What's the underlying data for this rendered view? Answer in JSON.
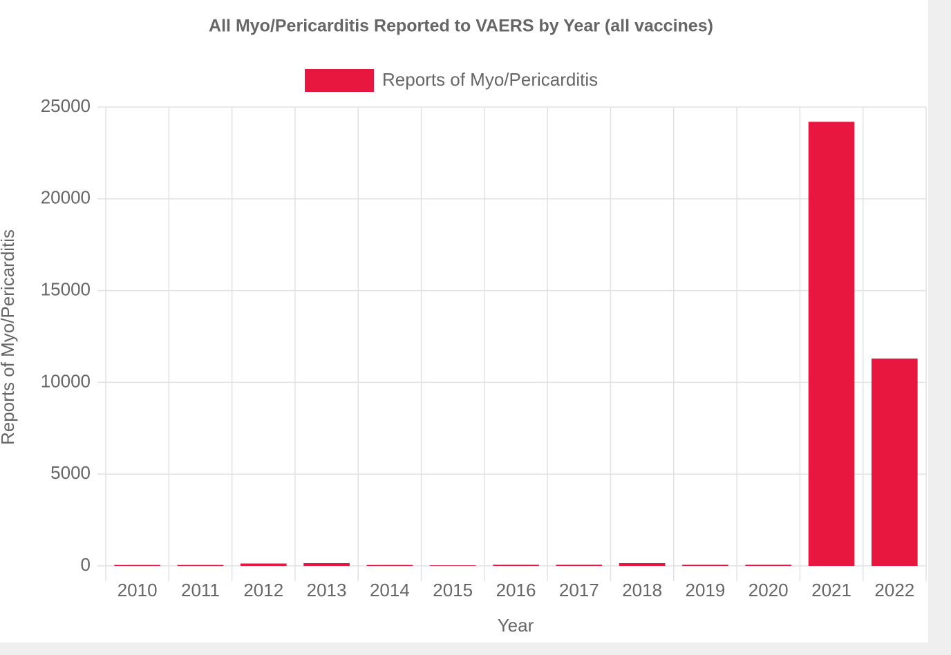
{
  "chart_data": {
    "type": "bar",
    "title": "All Myo/Pericarditis Reported to VAERS by Year (all vaccines)",
    "x_label": "Year",
    "y_label": "Reports of Myo/Pericarditis",
    "categories": [
      "2010",
      "2011",
      "2012",
      "2013",
      "2014",
      "2015",
      "2016",
      "2017",
      "2018",
      "2019",
      "2020",
      "2021",
      "2022"
    ],
    "series": [
      {
        "name": "Reports of Myo/Pericarditis",
        "color": "#e8173f",
        "values": [
          50,
          50,
          130,
          150,
          50,
          30,
          60,
          60,
          150,
          60,
          60,
          24200,
          11300
        ]
      }
    ],
    "ylim": [
      0,
      25000
    ],
    "yticks": [
      0,
      5000,
      10000,
      15000,
      20000,
      25000
    ],
    "grid": true
  }
}
